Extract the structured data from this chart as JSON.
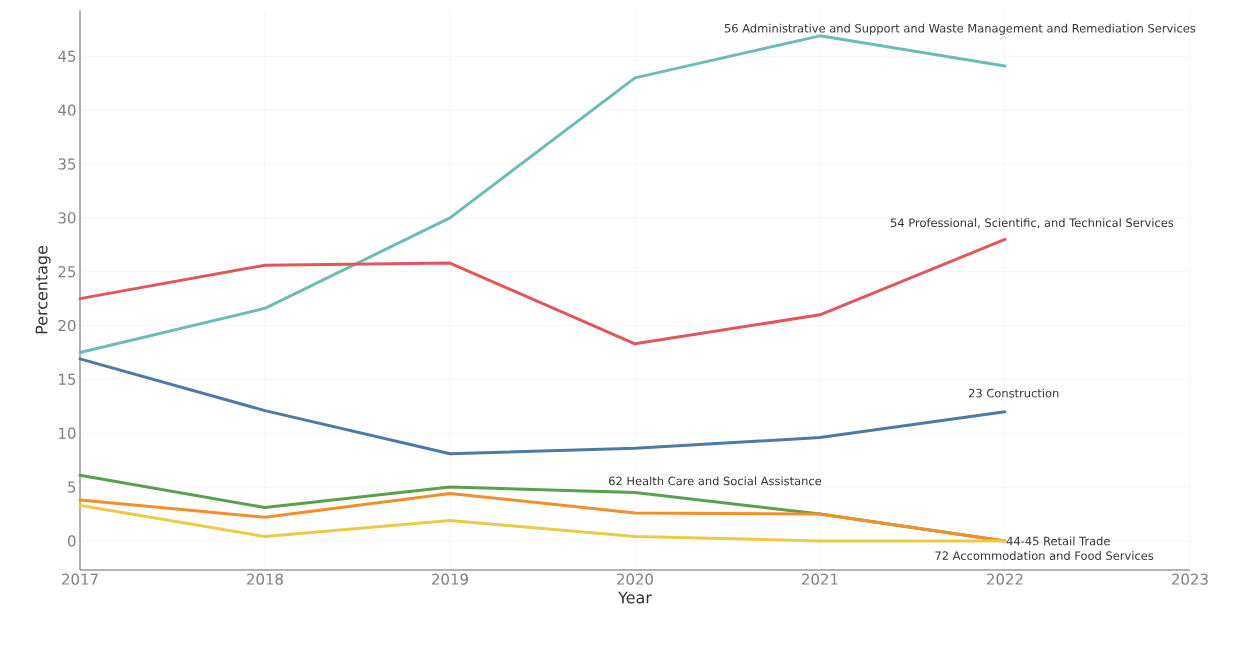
{
  "chart_data": {
    "type": "line",
    "xlabel": "Year",
    "ylabel": "Percentage",
    "x": [
      2017,
      2018,
      2019,
      2020,
      2021,
      2022
    ],
    "xlim": [
      2017,
      2023
    ],
    "xticks": [
      2017,
      2018,
      2019,
      2020,
      2021,
      2022,
      2023
    ],
    "ylim": [
      -2.7,
      49.3
    ],
    "yticks": [
      0,
      5,
      10,
      15,
      20,
      25,
      30,
      35,
      40,
      45
    ],
    "grid": true,
    "legend": false,
    "marker": "none",
    "line_style": "solid",
    "series": [
      {
        "name": "56 Administrative and Support and Waste Management and Remediation Services",
        "color": "#6cbcb5",
        "values": [
          17.5,
          21.6,
          30.0,
          43.0,
          46.9,
          44.1
        ]
      },
      {
        "name": "54 Professional, Scientific, and Technical Services",
        "color": "#e15759",
        "values": [
          22.5,
          25.6,
          25.8,
          18.3,
          21.0,
          28.0
        ]
      },
      {
        "name": "23 Construction",
        "color": "#4e79a7",
        "values": [
          16.9,
          12.1,
          8.1,
          8.6,
          9.6,
          12.0
        ]
      },
      {
        "name": "62 Health Care and Social Assistance",
        "color": "#59a14f",
        "values": [
          6.1,
          3.1,
          5.0,
          4.5,
          2.5,
          0
        ]
      },
      {
        "name": "44-45 Retail Trade",
        "color": "#f28e2b",
        "values": [
          3.8,
          2.2,
          4.4,
          2.6,
          2.5,
          0
        ]
      },
      {
        "name": "72 Accommodation and Food Services",
        "color": "#edc948",
        "values": [
          3.3,
          0.4,
          1.9,
          0.4,
          0,
          0
        ]
      }
    ]
  }
}
